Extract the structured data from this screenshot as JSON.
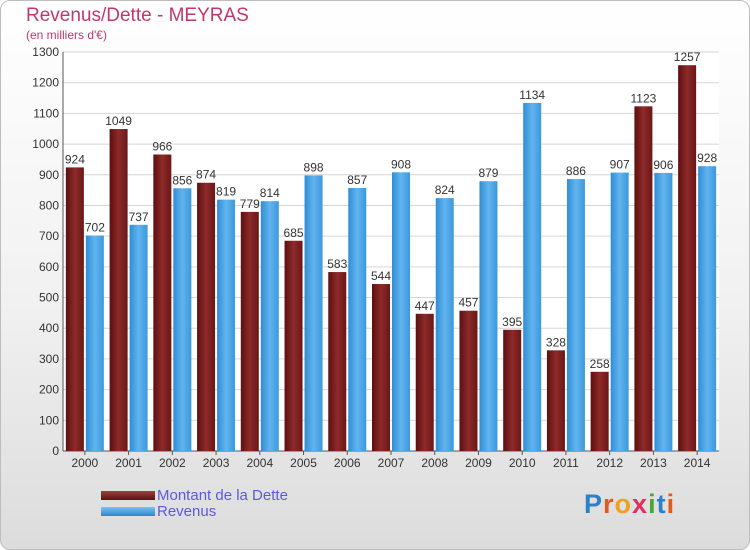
{
  "chart_data": {
    "type": "bar",
    "title": "Revenus/Dette - MEYRAS",
    "subtitle": "(en milliers d'€)",
    "categories": [
      "2000",
      "2001",
      "2002",
      "2003",
      "2004",
      "2005",
      "2006",
      "2007",
      "2008",
      "2009",
      "2010",
      "2011",
      "2012",
      "2013",
      "2014"
    ],
    "series": [
      {
        "name": "Montant de la Dette",
        "color": "#7a1f1f",
        "values": [
          924,
          1049,
          966,
          874,
          779,
          685,
          583,
          544,
          447,
          457,
          395,
          328,
          258,
          1123,
          1257
        ]
      },
      {
        "name": "Revenus",
        "color": "#4aa3e6",
        "values": [
          702,
          737,
          856,
          819,
          814,
          898,
          857,
          908,
          824,
          879,
          1134,
          886,
          907,
          906,
          928
        ]
      }
    ],
    "yticks": [
      0,
      100,
      200,
      300,
      400,
      500,
      600,
      700,
      800,
      900,
      1000,
      1100,
      1200,
      1300
    ],
    "ylim": [
      0,
      1300
    ],
    "grid": true,
    "legend_position": "bottom-left"
  },
  "logo": {
    "text": "Proxiti"
  }
}
